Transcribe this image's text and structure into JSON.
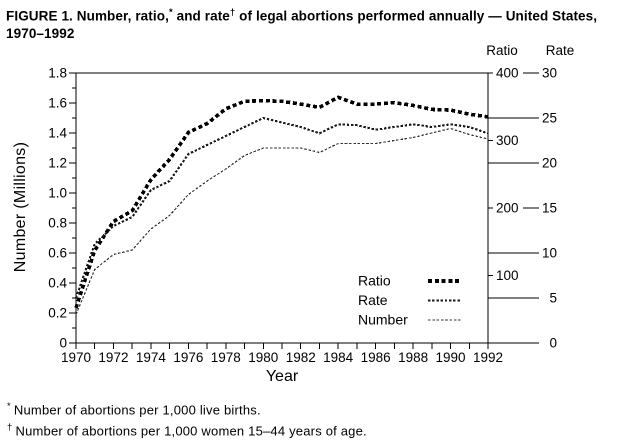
{
  "figure": {
    "title": "FIGURE 1. Number, ratio,* and rate† of legal abortions performed annually — United States, 1970–1992",
    "footnotes": [
      {
        "marker": "*",
        "text": "Number of abortions per 1,000 live births."
      },
      {
        "marker": "†",
        "text": "Number of abortions per 1,000 women 15–44 years of age."
      }
    ]
  },
  "chart_data": {
    "type": "line",
    "x": [
      1970,
      1971,
      1972,
      1973,
      1974,
      1975,
      1976,
      1977,
      1978,
      1979,
      1980,
      1981,
      1982,
      1983,
      1984,
      1985,
      1986,
      1987,
      1988,
      1989,
      1990,
      1991,
      1992
    ],
    "series": [
      {
        "name": "Ratio",
        "axis": "ratio",
        "values": [
          52,
          137,
          180,
          196,
          242,
          272,
          312,
          325,
          347,
          358,
          359,
          358,
          354,
          349,
          364,
          354,
          354,
          356,
          352,
          346,
          345,
          339,
          335
        ]
      },
      {
        "name": "Rate",
        "axis": "rate",
        "values": [
          5,
          11,
          13,
          14,
          17,
          18,
          21,
          22,
          23,
          24,
          25,
          24.5,
          24,
          23.3,
          24.3,
          24.2,
          23.7,
          24,
          24.3,
          24,
          24.3,
          24,
          23.3
        ]
      },
      {
        "name": "Number",
        "axis": "number",
        "values": [
          0.19,
          0.49,
          0.59,
          0.62,
          0.76,
          0.85,
          0.99,
          1.08,
          1.16,
          1.25,
          1.3,
          1.3,
          1.3,
          1.27,
          1.33,
          1.33,
          1.33,
          1.35,
          1.37,
          1.4,
          1.43,
          1.39,
          1.36
        ]
      }
    ],
    "axes": {
      "left": {
        "label": "Number (Millions)",
        "min": 0,
        "max": 1.8,
        "tick_labels": [
          "0",
          "0.2",
          "0.4",
          "0.6",
          "0.8",
          "1.0",
          "1.2",
          "1.4",
          "1.6",
          "1.8"
        ]
      },
      "bottom": {
        "label": "Year",
        "min": 1970,
        "max": 1992,
        "tick_labels": [
          "1970",
          "1972",
          "1974",
          "1976",
          "1978",
          "1980",
          "1982",
          "1984",
          "1986",
          "1988",
          "1990",
          "1992"
        ]
      },
      "ratio_right": {
        "title": "Ratio",
        "min": 0,
        "max": 400,
        "tick_labels": [
          "100",
          "200",
          "300",
          "400"
        ]
      },
      "rate_right": {
        "title": "Rate",
        "min": 0,
        "max": 30,
        "tick_labels": [
          "0",
          "5",
          "10",
          "15",
          "20",
          "25",
          "30"
        ]
      }
    },
    "legend": {
      "items": [
        "Ratio",
        "Rate",
        "Number"
      ],
      "position": "inside-lower-right"
    },
    "grid": false,
    "colors": {
      "foreground": "#000000",
      "background": "#ffffff"
    }
  }
}
